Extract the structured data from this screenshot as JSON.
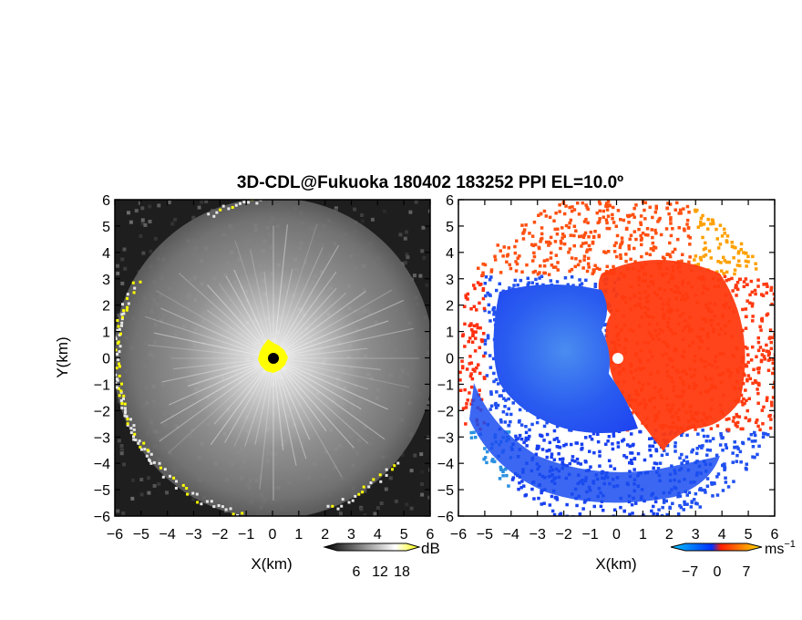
{
  "chart_data": [
    {
      "type": "heatmap",
      "title": "3D-CDL@Fukuoka 180402 183252 PPI EL=10.0º",
      "xlabel": "X(km)",
      "ylabel": "Y(km)",
      "xlim": [
        -6,
        6
      ],
      "ylim": [
        -6,
        6
      ],
      "x_ticks": [
        "−6",
        "−5",
        "−4",
        "−3",
        "−2",
        "−1",
        "0",
        "1",
        "2",
        "3",
        "4",
        "5",
        "6"
      ],
      "y_ticks": [
        "6",
        "5",
        "4",
        "3",
        "2",
        "1",
        "0",
        "−1",
        "−2",
        "−3",
        "−4",
        "−5",
        "−6"
      ],
      "colorbar": {
        "unit": "dB",
        "ticks": [
          "6",
          "12",
          "18"
        ],
        "colors": [
          "#000000",
          "#ffffff",
          "#ffff00"
        ]
      },
      "background_color": "#1e1e1e",
      "radar_center_color": "#000000",
      "edge_color": "#ffff00"
    },
    {
      "type": "heatmap",
      "xlabel": "X(km)",
      "xlim": [
        -6,
        6
      ],
      "ylim": [
        -6,
        6
      ],
      "x_ticks": [
        "−6",
        "−5",
        "−4",
        "−3",
        "−2",
        "−1",
        "0",
        "1",
        "2",
        "3",
        "4",
        "5",
        "6"
      ],
      "y_ticks": [
        "6",
        "5",
        "4",
        "3",
        "2",
        "1",
        "0",
        "−1",
        "−2",
        "−3",
        "−4",
        "−5",
        "−6"
      ],
      "colorbar": {
        "unit": "ms",
        "unit_exponent": "−1",
        "ticks": [
          "−7",
          "0",
          "7"
        ],
        "colors": [
          "#00c8ff",
          "#0030ff",
          "#ff2000",
          "#ffe000"
        ]
      },
      "approaching_color": "#1a4cf0",
      "receding_color": "#ff3a10",
      "radar_center_color": "#ffffff"
    }
  ]
}
